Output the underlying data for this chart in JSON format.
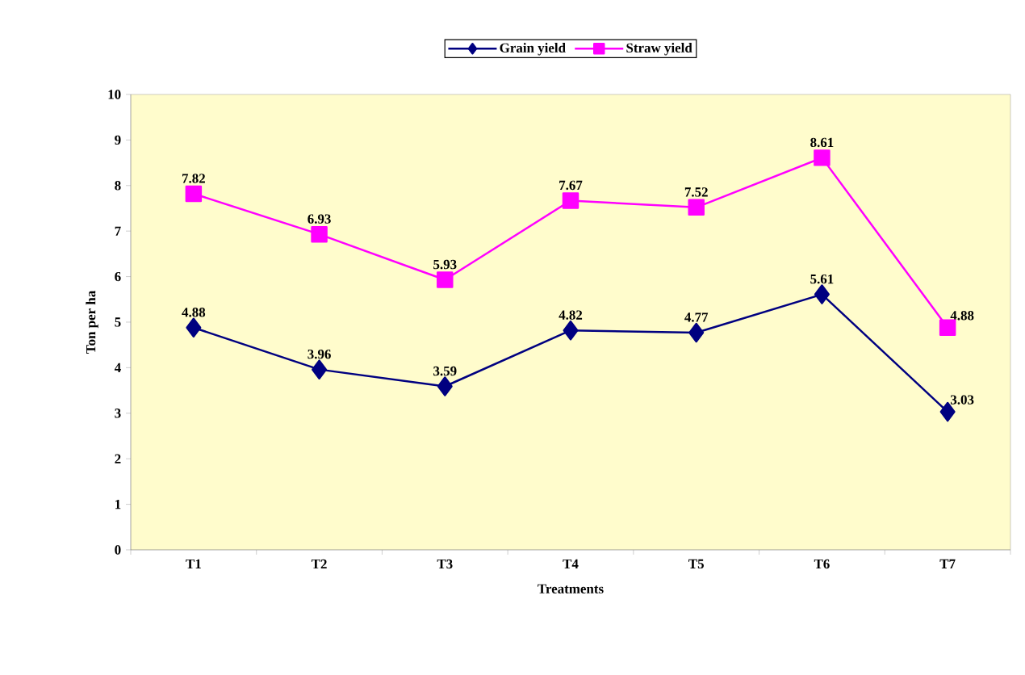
{
  "chart_data": {
    "type": "line",
    "xlabel": "Treatments",
    "ylabel": "Ton per ha",
    "categories": [
      "T1",
      "T2",
      "T3",
      "T4",
      "T5",
      "T6",
      "T7"
    ],
    "series": [
      {
        "name": "Grain yield",
        "color": "#000080",
        "marker": "diamond",
        "values": [
          4.88,
          3.96,
          3.59,
          4.82,
          4.77,
          5.61,
          3.03
        ]
      },
      {
        "name": "Straw yield",
        "color": "#ff00ff",
        "marker": "square",
        "values": [
          7.82,
          6.93,
          5.93,
          7.67,
          7.52,
          8.61,
          4.88
        ]
      }
    ],
    "ylim": [
      0,
      10
    ],
    "yticks": [
      0,
      1,
      2,
      3,
      4,
      5,
      6,
      7,
      8,
      9,
      10
    ],
    "grid": false,
    "legend": "top",
    "data_labels": true,
    "line_style": "solid"
  }
}
